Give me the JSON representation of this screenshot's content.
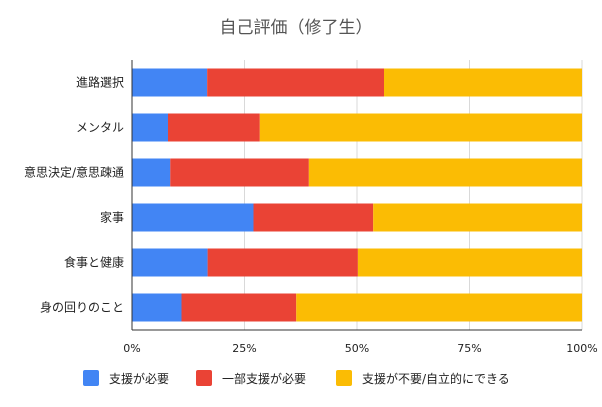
{
  "chart_data": {
    "type": "bar",
    "orientation": "horizontal",
    "stacked": "percent",
    "title": "自己評価（修了生）",
    "categories": [
      "進路選択",
      "メンタル",
      "意思決定/意思疎通",
      "家事",
      "食事と健康",
      "身の回りのこと"
    ],
    "series": [
      {
        "name": "支援が必要",
        "color": "#4285f4",
        "values": [
          16.7,
          8.0,
          8.5,
          27.0,
          16.8,
          11.0
        ]
      },
      {
        "name": "一部支援が必要",
        "color": "#ea4335",
        "values": [
          39.3,
          20.4,
          30.8,
          26.6,
          33.4,
          25.5
        ]
      },
      {
        "name": "支援が不要/自立的にできる",
        "color": "#fbbc04",
        "values": [
          44.0,
          71.6,
          60.7,
          46.4,
          49.8,
          63.5
        ]
      }
    ],
    "xlim": [
      0,
      100
    ],
    "xticks": [
      "0%",
      "25%",
      "50%",
      "75%",
      "100%"
    ],
    "grid": true,
    "legend_position": "bottom"
  }
}
